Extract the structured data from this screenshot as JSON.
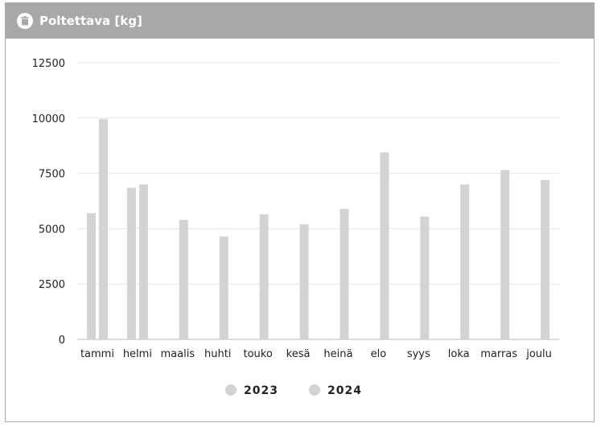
{
  "header": {
    "title": "Poltettava [kg]",
    "icon": "bin-icon"
  },
  "colors": {
    "header_bg": "#a8a8a8",
    "bar_2023": "#d3d3d3",
    "bar_2024": "#d3d3d3",
    "grid": "#e6e6e6",
    "axis": "#c8d0e0"
  },
  "chart_data": {
    "type": "bar",
    "categories": [
      "tammi",
      "helmi",
      "maalis",
      "huhti",
      "touko",
      "kesä",
      "heinä",
      "elo",
      "syys",
      "loka",
      "marras",
      "joulu"
    ],
    "series": [
      {
        "name": "2023",
        "values": [
          5700,
          6850,
          0,
          0,
          0,
          0,
          0,
          0,
          0,
          0,
          0,
          0
        ]
      },
      {
        "name": "2024",
        "values": [
          9950,
          7000,
          5400,
          4650,
          5650,
          5200,
          5900,
          8450,
          5550,
          7000,
          7650,
          7200
        ]
      }
    ],
    "y_ticks": [
      "0",
      "2500",
      "5000",
      "7500",
      "10000",
      "12500"
    ],
    "ylim": [
      0,
      12500
    ],
    "grid": true,
    "legend_position": "bottom"
  }
}
